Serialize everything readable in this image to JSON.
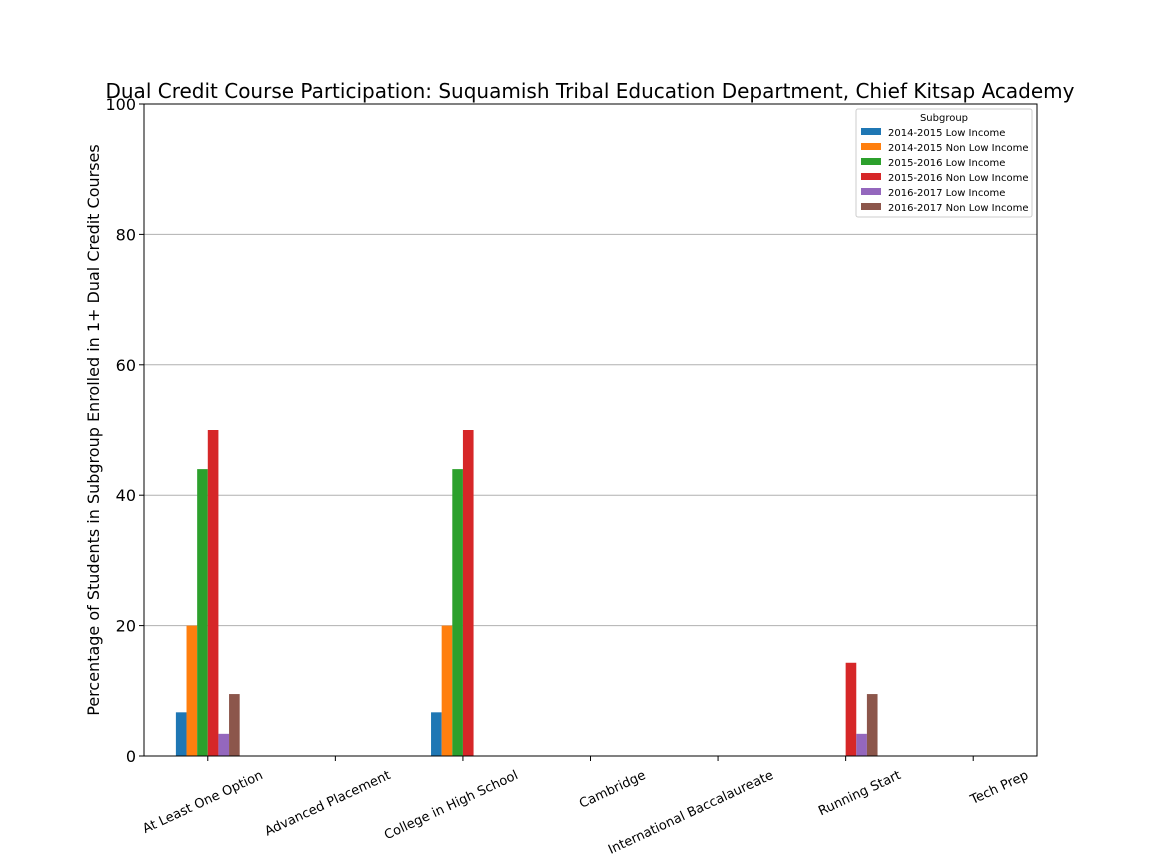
{
  "chart_data": {
    "type": "bar",
    "title": "Dual Credit Course Participation: Suquamish Tribal Education Department, Chief Kitsap Academy",
    "xlabel": "",
    "ylabel": "Percentage of Students in Subgroup Enrolled in 1+ Dual Credit Courses",
    "ylim": [
      0,
      100
    ],
    "yticks": [
      0,
      20,
      40,
      60,
      80,
      100
    ],
    "grid": "horizontal",
    "legend": {
      "title": "Subgroup",
      "placement": "top-right"
    },
    "categories": [
      "At Least One Option",
      "Advanced Placement",
      "College in High School",
      "Cambridge",
      "International Baccalaureate",
      "Running Start",
      "Tech Prep"
    ],
    "series": [
      {
        "name": "2014-2015 Low Income",
        "color": "#1f77b4",
        "values": [
          6.7,
          0,
          6.7,
          0,
          0,
          0,
          0
        ]
      },
      {
        "name": "2014-2015 Non Low Income",
        "color": "#ff7f0e",
        "values": [
          20,
          0,
          20,
          0,
          0,
          0,
          0
        ]
      },
      {
        "name": "2015-2016 Low Income",
        "color": "#2ca02c",
        "values": [
          44,
          0,
          44,
          0,
          0,
          0,
          0
        ]
      },
      {
        "name": "2015-2016 Non Low Income",
        "color": "#d62728",
        "values": [
          50,
          0,
          50,
          0,
          0,
          14.3,
          0
        ]
      },
      {
        "name": "2016-2017 Low Income",
        "color": "#9467bd",
        "values": [
          3.4,
          0,
          0,
          0,
          0,
          3.4,
          0
        ]
      },
      {
        "name": "2016-2017 Non Low Income",
        "color": "#8c564b",
        "values": [
          9.5,
          0,
          0,
          0,
          0,
          9.5,
          0
        ]
      }
    ]
  }
}
